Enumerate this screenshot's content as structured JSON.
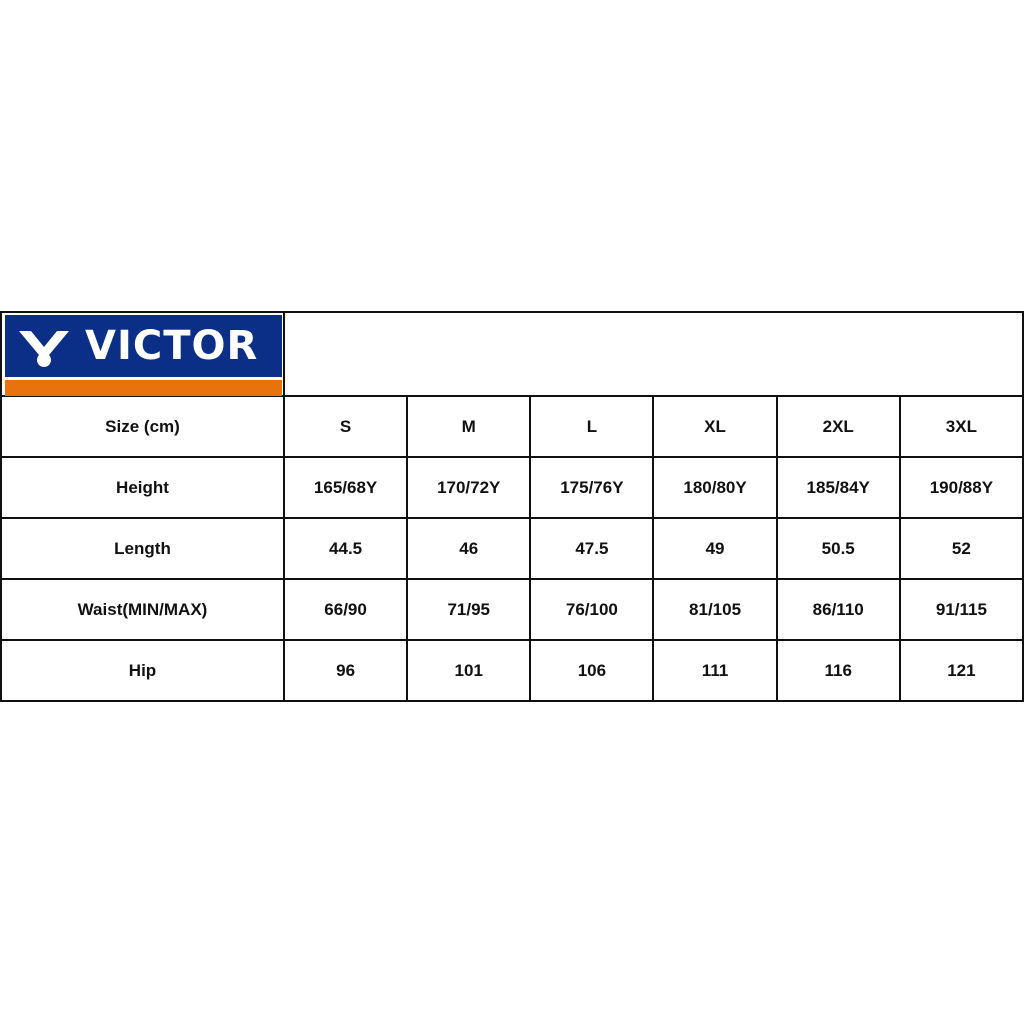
{
  "brand": {
    "logo_text": "VICTOR",
    "colors": {
      "blue": "#0b2f86",
      "orange": "#e8720c"
    }
  },
  "table": {
    "header": {
      "label": "Size (cm)",
      "sizes": [
        "S",
        "M",
        "L",
        "XL",
        "2XL",
        "3XL"
      ]
    },
    "rows": [
      {
        "label": "Height",
        "values": [
          "165/68Y",
          "170/72Y",
          "175/76Y",
          "180/80Y",
          "185/84Y",
          "190/88Y"
        ]
      },
      {
        "label": "Length",
        "values": [
          "44.5",
          "46",
          "47.5",
          "49",
          "50.5",
          "52"
        ]
      },
      {
        "label": "Waist(MIN/MAX)",
        "values": [
          "66/90",
          "71/95",
          "76/100",
          "81/105",
          "86/110",
          "91/115"
        ]
      },
      {
        "label": "Hip",
        "values": [
          "96",
          "101",
          "106",
          "111",
          "116",
          "121"
        ]
      }
    ]
  }
}
